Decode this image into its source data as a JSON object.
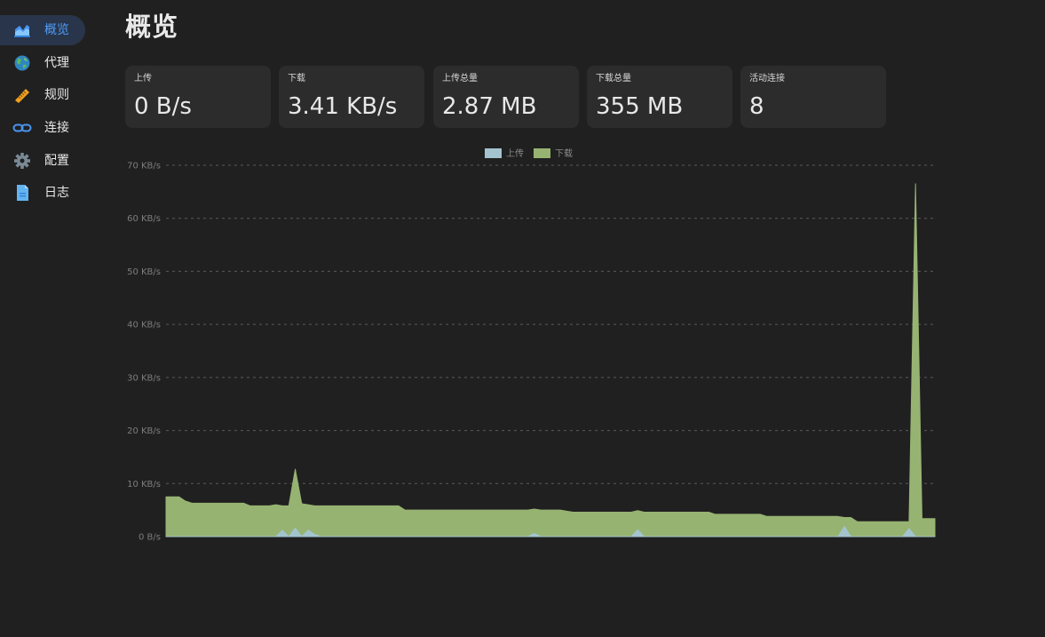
{
  "sidebar": {
    "items": [
      {
        "label": "概览",
        "icon": "area-chart-icon",
        "active": true
      },
      {
        "label": "代理",
        "icon": "globe-icon",
        "active": false
      },
      {
        "label": "规则",
        "icon": "ruler-icon",
        "active": false
      },
      {
        "label": "连接",
        "icon": "link-icon",
        "active": false
      },
      {
        "label": "配置",
        "icon": "gear-icon",
        "active": false
      },
      {
        "label": "日志",
        "icon": "document-icon",
        "active": false
      }
    ]
  },
  "page": {
    "title": "概览"
  },
  "stats": [
    {
      "label": "上传",
      "value": "0 B/s"
    },
    {
      "label": "下载",
      "value": "3.41 KB/s"
    },
    {
      "label": "上传总量",
      "value": "2.87 MB"
    },
    {
      "label": "下载总量",
      "value": "355 MB"
    },
    {
      "label": "活动连接",
      "value": "8"
    }
  ],
  "colors": {
    "background": "#202020",
    "card": "#2c2c2c",
    "accent": "#4f9cf7",
    "upload": "#a3c4cf",
    "download": "#97b372"
  },
  "chart_data": {
    "type": "area",
    "title": "",
    "legend": [
      "上传",
      "下载"
    ],
    "legend_position": "top-center",
    "ylabel": "",
    "xlabel": "",
    "ylim": [
      0,
      70
    ],
    "y_ticks": [
      "0 B/s",
      "10 KB/s",
      "20 KB/s",
      "30 KB/s",
      "40 KB/s",
      "50 KB/s",
      "60 KB/s",
      "70 KB/s"
    ],
    "grid": true,
    "x": [
      0,
      1,
      2,
      3,
      4,
      5,
      6,
      7,
      8,
      9,
      10,
      11,
      12,
      13,
      14,
      15,
      16,
      17,
      18,
      19,
      20,
      21,
      22,
      23,
      24,
      25,
      26,
      27,
      28,
      29,
      30,
      31,
      32,
      33,
      34,
      35,
      36,
      37,
      38,
      39,
      40,
      41,
      42,
      43,
      44,
      45,
      46,
      47,
      48,
      49,
      50,
      51,
      52,
      53,
      54,
      55,
      56,
      57,
      58,
      59,
      60,
      61,
      62,
      63,
      64,
      65,
      66,
      67,
      68,
      69,
      70,
      71,
      72,
      73,
      74,
      75,
      76,
      77,
      78,
      79,
      80,
      81,
      82,
      83,
      84,
      85,
      86,
      87,
      88,
      89,
      90,
      91,
      92,
      93,
      94,
      95,
      96,
      97,
      98,
      99,
      100,
      101,
      102,
      103,
      104,
      105,
      106,
      107,
      108,
      109,
      110,
      111,
      112,
      113,
      114,
      115,
      116,
      117,
      118,
      119
    ],
    "series": [
      {
        "name": "上传",
        "values": [
          0,
          0,
          0,
          0,
          0,
          0,
          0,
          0,
          0,
          0,
          0,
          0,
          0,
          0,
          0,
          0,
          0,
          0,
          1.2,
          0,
          1.6,
          0,
          1.2,
          0.4,
          0,
          0,
          0,
          0,
          0,
          0,
          0,
          0,
          0,
          0,
          0,
          0,
          0,
          0,
          0,
          0,
          0,
          0,
          0,
          0,
          0,
          0,
          0,
          0,
          0,
          0,
          0,
          0,
          0,
          0,
          0,
          0,
          0,
          0.6,
          0,
          0,
          0,
          0,
          0,
          0,
          0,
          0,
          0,
          0,
          0,
          0,
          0,
          0,
          0,
          1.3,
          0,
          0,
          0,
          0,
          0,
          0,
          0,
          0,
          0,
          0,
          0,
          0,
          0,
          0,
          0,
          0,
          0,
          0,
          0,
          0,
          0,
          0,
          0,
          0,
          0,
          0,
          0,
          0,
          0,
          0,
          0,
          1.9,
          0,
          0,
          0,
          0,
          0,
          0,
          0,
          0,
          0,
          1.5,
          0,
          0,
          0,
          0
        ]
      },
      {
        "name": "下载",
        "values": [
          7.5,
          7.5,
          7.5,
          6.7,
          6.3,
          6.3,
          6.3,
          6.3,
          6.3,
          6.3,
          6.3,
          6.3,
          6.3,
          5.8,
          5.8,
          5.8,
          5.8,
          6.0,
          5.8,
          5.8,
          12.7,
          6.2,
          6.0,
          5.8,
          5.8,
          5.8,
          5.8,
          5.8,
          5.8,
          5.8,
          5.8,
          5.8,
          5.8,
          5.8,
          5.8,
          5.8,
          5.8,
          5.0,
          5.0,
          5.0,
          5.0,
          5.0,
          5.0,
          5.0,
          5.0,
          5.0,
          5.0,
          5.0,
          5.0,
          5.0,
          5.0,
          5.0,
          5.0,
          5.0,
          5.0,
          5.0,
          5.0,
          5.2,
          5.0,
          5.0,
          5.0,
          5.0,
          4.8,
          4.6,
          4.6,
          4.6,
          4.6,
          4.6,
          4.6,
          4.6,
          4.6,
          4.6,
          4.6,
          4.9,
          4.6,
          4.6,
          4.6,
          4.6,
          4.6,
          4.6,
          4.6,
          4.6,
          4.6,
          4.6,
          4.6,
          4.2,
          4.2,
          4.2,
          4.2,
          4.2,
          4.2,
          4.2,
          4.2,
          3.8,
          3.8,
          3.8,
          3.8,
          3.8,
          3.8,
          3.8,
          3.8,
          3.8,
          3.8,
          3.8,
          3.8,
          3.6,
          3.6,
          2.8,
          2.8,
          2.8,
          2.8,
          2.8,
          2.8,
          2.8,
          2.8,
          2.8,
          66.5,
          3.4,
          3.4,
          3.4
        ]
      }
    ]
  }
}
